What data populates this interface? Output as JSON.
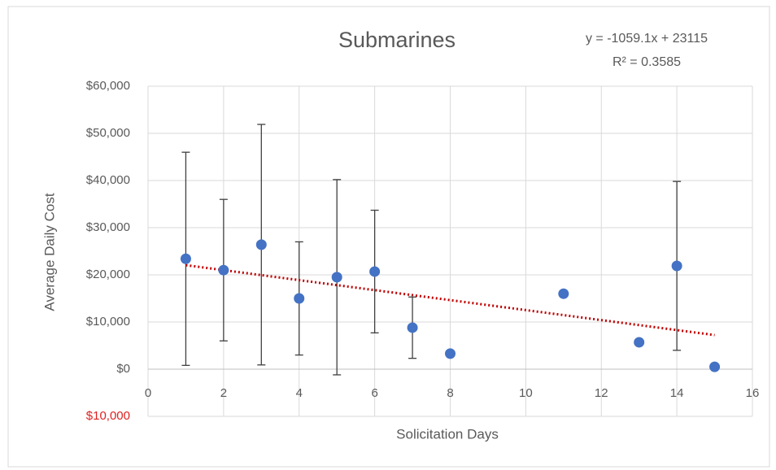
{
  "chart_data": {
    "type": "scatter",
    "title": "Submarines",
    "x_label": "Solicitation Days",
    "y_label": "Average Daily Cost",
    "series": [
      {
        "color": "#4472c4",
        "x": [
          1,
          2,
          3,
          4,
          5,
          6,
          7,
          8,
          11,
          13,
          14,
          15
        ],
        "values": [
          23400,
          21000,
          26400,
          15000,
          19500,
          20700,
          8800,
          3300,
          16000,
          5700,
          21900,
          500
        ],
        "errors": [
          22600,
          15000,
          25500,
          12000,
          20700,
          13000,
          6500,
          null,
          null,
          null,
          17900,
          null
        ]
      }
    ],
    "trendline": {
      "equation": "y = -1059.1x + 23115",
      "r_squared": "R² = 0.3585",
      "slope": -1059.1,
      "intercept": 23115,
      "color": "#c00000"
    },
    "xlim": [
      0,
      16
    ],
    "xticks": [
      0,
      2,
      4,
      6,
      8,
      10,
      12,
      14,
      16
    ],
    "ylim": [
      -10000,
      60000
    ],
    "yticks": [
      {
        "value": -10000,
        "label": "$10,000"
      },
      {
        "value": 0,
        "label": "$0"
      },
      {
        "value": 10000,
        "label": "$10,000"
      },
      {
        "value": 20000,
        "label": "$20,000"
      },
      {
        "value": 30000,
        "label": "$30,000"
      },
      {
        "value": 40000,
        "label": "$40,000"
      },
      {
        "value": 50000,
        "label": "$50,000"
      },
      {
        "value": 60000,
        "label": "$60,000"
      }
    ],
    "negative_tick_color": "#e02020",
    "grid": true
  }
}
